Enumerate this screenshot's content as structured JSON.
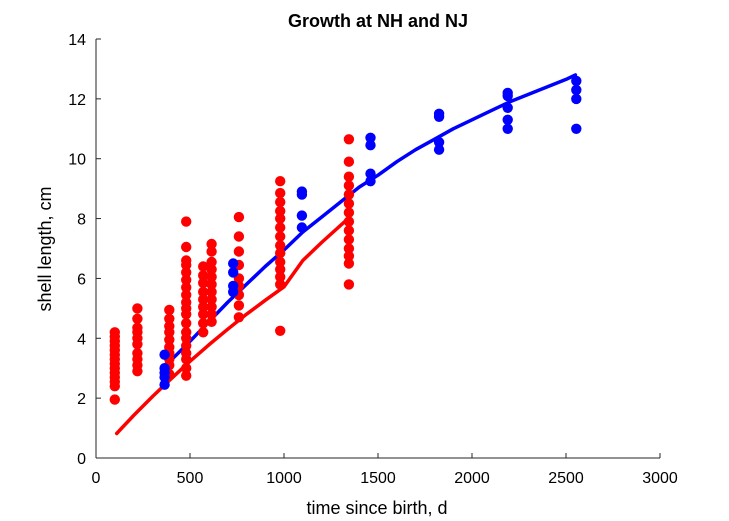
{
  "chart_data": {
    "type": "scatter",
    "title": "Growth at NH and NJ",
    "xlabel": "time since birth, d",
    "ylabel": "shell length, cm",
    "xlim": [
      0,
      3000
    ],
    "ylim": [
      0,
      14
    ],
    "xticks": [
      "0",
      "500",
      "1000",
      "1500",
      "2000",
      "2500",
      "3000"
    ],
    "yticks": [
      "0",
      "2",
      "4",
      "6",
      "8",
      "10",
      "12",
      "14"
    ],
    "grid": false,
    "legend": "none",
    "series": [
      {
        "color": "#ff0000",
        "points": [
          [
            100,
            1.95
          ],
          [
            100,
            2.4
          ],
          [
            100,
            2.55
          ],
          [
            100,
            2.7
          ],
          [
            100,
            2.85
          ],
          [
            100,
            3.0
          ],
          [
            100,
            3.15
          ],
          [
            100,
            3.3
          ],
          [
            100,
            3.45
          ],
          [
            100,
            3.6
          ],
          [
            100,
            3.75
          ],
          [
            100,
            3.9
          ],
          [
            100,
            4.05
          ],
          [
            100,
            4.2
          ],
          [
            220,
            2.9
          ],
          [
            220,
            3.1
          ],
          [
            220,
            3.3
          ],
          [
            220,
            3.5
          ],
          [
            220,
            3.8
          ],
          [
            220,
            4.0
          ],
          [
            220,
            4.2
          ],
          [
            220,
            4.35
          ],
          [
            220,
            4.65
          ],
          [
            220,
            5.0
          ],
          [
            390,
            2.8
          ],
          [
            390,
            3.1
          ],
          [
            390,
            3.3
          ],
          [
            390,
            3.5
          ],
          [
            390,
            3.7
          ],
          [
            390,
            3.95
          ],
          [
            390,
            4.2
          ],
          [
            390,
            4.4
          ],
          [
            390,
            4.65
          ],
          [
            390,
            4.95
          ],
          [
            480,
            2.75
          ],
          [
            480,
            3.0
          ],
          [
            480,
            3.3
          ],
          [
            480,
            3.5
          ],
          [
            480,
            3.75
          ],
          [
            480,
            4.0
          ],
          [
            480,
            4.2
          ],
          [
            480,
            4.5
          ],
          [
            480,
            4.8
          ],
          [
            480,
            5.0
          ],
          [
            480,
            5.2
          ],
          [
            480,
            5.45
          ],
          [
            480,
            5.7
          ],
          [
            480,
            5.95
          ],
          [
            480,
            6.2
          ],
          [
            480,
            6.45
          ],
          [
            480,
            6.6
          ],
          [
            480,
            7.05
          ],
          [
            480,
            7.9
          ],
          [
            570,
            4.2
          ],
          [
            570,
            4.5
          ],
          [
            570,
            4.8
          ],
          [
            570,
            5.05
          ],
          [
            570,
            5.3
          ],
          [
            570,
            5.55
          ],
          [
            570,
            5.85
          ],
          [
            570,
            6.1
          ],
          [
            570,
            6.4
          ],
          [
            615,
            4.55
          ],
          [
            615,
            4.8
          ],
          [
            615,
            5.05
          ],
          [
            615,
            5.3
          ],
          [
            615,
            5.55
          ],
          [
            615,
            5.8
          ],
          [
            615,
            6.05
          ],
          [
            615,
            6.3
          ],
          [
            615,
            6.55
          ],
          [
            615,
            6.9
          ],
          [
            615,
            7.15
          ],
          [
            760,
            4.7
          ],
          [
            760,
            5.1
          ],
          [
            760,
            5.45
          ],
          [
            760,
            5.75
          ],
          [
            760,
            6.0
          ],
          [
            760,
            6.45
          ],
          [
            760,
            6.9
          ],
          [
            760,
            7.4
          ],
          [
            760,
            8.05
          ],
          [
            980,
            4.25
          ],
          [
            980,
            5.8
          ],
          [
            980,
            6.05
          ],
          [
            980,
            6.3
          ],
          [
            980,
            6.55
          ],
          [
            980,
            6.85
          ],
          [
            980,
            7.1
          ],
          [
            980,
            7.4
          ],
          [
            980,
            7.7
          ],
          [
            980,
            8.0
          ],
          [
            980,
            8.25
          ],
          [
            980,
            8.55
          ],
          [
            980,
            8.85
          ],
          [
            980,
            9.25
          ],
          [
            1345,
            5.8
          ],
          [
            1345,
            6.5
          ],
          [
            1345,
            6.75
          ],
          [
            1345,
            7.0
          ],
          [
            1345,
            7.3
          ],
          [
            1345,
            7.6
          ],
          [
            1345,
            7.9
          ],
          [
            1345,
            8.2
          ],
          [
            1345,
            8.5
          ],
          [
            1345,
            8.8
          ],
          [
            1345,
            9.1
          ],
          [
            1345,
            9.4
          ],
          [
            1345,
            9.9
          ],
          [
            1345,
            10.65
          ]
        ]
      },
      {
        "color": "#0000ff",
        "points": [
          [
            365,
            2.45
          ],
          [
            365,
            2.7
          ],
          [
            365,
            2.85
          ],
          [
            365,
            3.0
          ],
          [
            365,
            3.45
          ],
          [
            730,
            5.55
          ],
          [
            730,
            5.75
          ],
          [
            730,
            6.2
          ],
          [
            730,
            6.5
          ],
          [
            1095,
            7.7
          ],
          [
            1095,
            8.1
          ],
          [
            1095,
            8.8
          ],
          [
            1095,
            8.9
          ],
          [
            1460,
            9.25
          ],
          [
            1460,
            9.5
          ],
          [
            1460,
            10.45
          ],
          [
            1460,
            10.7
          ],
          [
            1825,
            10.3
          ],
          [
            1825,
            10.55
          ],
          [
            1825,
            11.4
          ],
          [
            1825,
            11.5
          ],
          [
            2190,
            11.0
          ],
          [
            2190,
            11.3
          ],
          [
            2190,
            11.7
          ],
          [
            2190,
            12.1
          ],
          [
            2190,
            12.2
          ],
          [
            2555,
            11.0
          ],
          [
            2555,
            12.0
          ],
          [
            2555,
            12.3
          ],
          [
            2555,
            12.6
          ]
        ]
      }
    ],
    "fits": [
      {
        "color": "#ff0000",
        "points": [
          [
            110,
            0.82
          ],
          [
            200,
            1.42
          ],
          [
            300,
            2.05
          ],
          [
            400,
            2.65
          ],
          [
            500,
            3.23
          ],
          [
            600,
            3.78
          ],
          [
            700,
            4.3
          ],
          [
            800,
            4.8
          ],
          [
            900,
            5.27
          ],
          [
            1000,
            5.72
          ],
          [
            1100,
            6.6
          ],
          [
            1200,
            7.2
          ],
          [
            1350,
            8.05
          ]
        ]
      },
      {
        "color": "#0000ff",
        "points": [
          [
            365,
            3.05
          ],
          [
            500,
            3.9
          ],
          [
            600,
            4.55
          ],
          [
            700,
            5.2
          ],
          [
            800,
            5.8
          ],
          [
            900,
            6.4
          ],
          [
            1000,
            6.95
          ],
          [
            1100,
            7.55
          ],
          [
            1200,
            8.05
          ],
          [
            1300,
            8.55
          ],
          [
            1400,
            9.05
          ],
          [
            1500,
            9.45
          ],
          [
            1600,
            9.9
          ],
          [
            1700,
            10.3
          ],
          [
            1800,
            10.65
          ],
          [
            1900,
            11.0
          ],
          [
            2000,
            11.3
          ],
          [
            2100,
            11.6
          ],
          [
            2200,
            11.9
          ],
          [
            2300,
            12.15
          ],
          [
            2400,
            12.4
          ],
          [
            2500,
            12.65
          ],
          [
            2550,
            12.8
          ]
        ]
      }
    ]
  }
}
